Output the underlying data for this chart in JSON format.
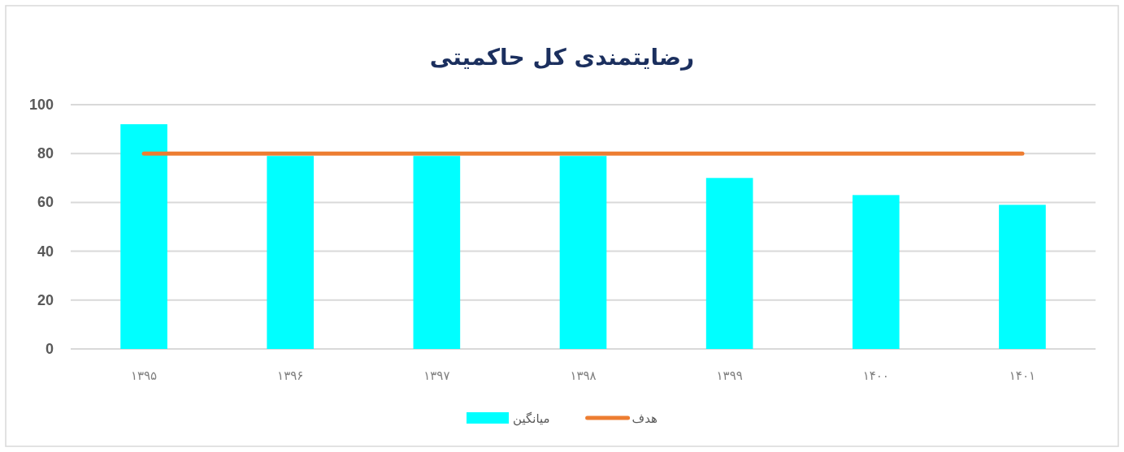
{
  "chart_data": {
    "type": "bar",
    "title": "رضایتمندی کل حاکمیتی",
    "categories": [
      "۱۳۹۵",
      "۱۳۹۶",
      "۱۳۹۷",
      "۱۳۹۸",
      "۱۳۹۹",
      "۱۴۰۰",
      "۱۴۰۱"
    ],
    "series": [
      {
        "name": "میانگین",
        "color": "#00ffff",
        "values": [
          92,
          79,
          79,
          79,
          70,
          63,
          59
        ]
      },
      {
        "name": "هدف",
        "type": "line",
        "color": "#ed7d31",
        "values": [
          80,
          80,
          80,
          80,
          80,
          80,
          80
        ]
      }
    ],
    "ylim": [
      0,
      100
    ],
    "yticks": [
      0,
      20,
      40,
      60,
      80,
      100
    ],
    "grid": "y",
    "legend": "bottom"
  }
}
